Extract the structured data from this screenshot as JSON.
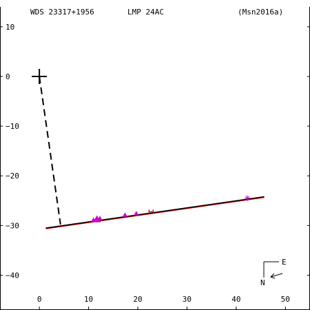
{
  "header": {
    "wds_id": "WDS 23317+1956",
    "discoverer": "LMP  24AC",
    "orbit_ref": "(Msn2016a)"
  },
  "compass": {
    "east": "E",
    "north": "N"
  },
  "colors": {
    "axis": "#000000",
    "orbit_line": "#000000",
    "orbit_outline": "#cc0000",
    "observations": "#cc00cc",
    "hipparcos": "#cc0000"
  },
  "chart_data": {
    "type": "scatter",
    "xlim": [
      -8,
      55
    ],
    "ylim": [
      -47,
      14
    ],
    "x_ticks": [
      0,
      10,
      20,
      30,
      40,
      50
    ],
    "y_ticks": [
      10,
      0,
      -10,
      -20,
      -30,
      -40
    ],
    "x_tick_labels": [
      "0",
      "10",
      "20",
      "30",
      "40",
      "50"
    ],
    "y_tick_labels": [
      "10",
      "0",
      "−10",
      "−20",
      "−30",
      "−40"
    ],
    "primary": {
      "x": 0,
      "y": 0
    },
    "node_line": {
      "from": [
        0,
        0
      ],
      "to": [
        4.3,
        -29.8
      ]
    },
    "orbit_segment": {
      "from": [
        1.3,
        -30.5
      ],
      "to": [
        45.7,
        -24.2
      ]
    },
    "observations": [
      {
        "x": 11.0,
        "y": -28.9,
        "marker": "triangle"
      },
      {
        "x": 11.4,
        "y": -29.0,
        "marker": "triangle"
      },
      {
        "x": 11.7,
        "y": -28.5,
        "marker": "triangle"
      },
      {
        "x": 12.0,
        "y": -29.0,
        "marker": "triangle"
      },
      {
        "x": 12.3,
        "y": -28.6,
        "marker": "triangle"
      },
      {
        "x": 17.4,
        "y": -27.9,
        "marker": "triangle"
      },
      {
        "x": 19.7,
        "y": -27.6,
        "marker": "triangle"
      },
      {
        "x": 42.3,
        "y": -24.5,
        "marker": "star"
      }
    ],
    "hipparcos_point": {
      "x": 22.7,
      "y": -27.2
    }
  }
}
